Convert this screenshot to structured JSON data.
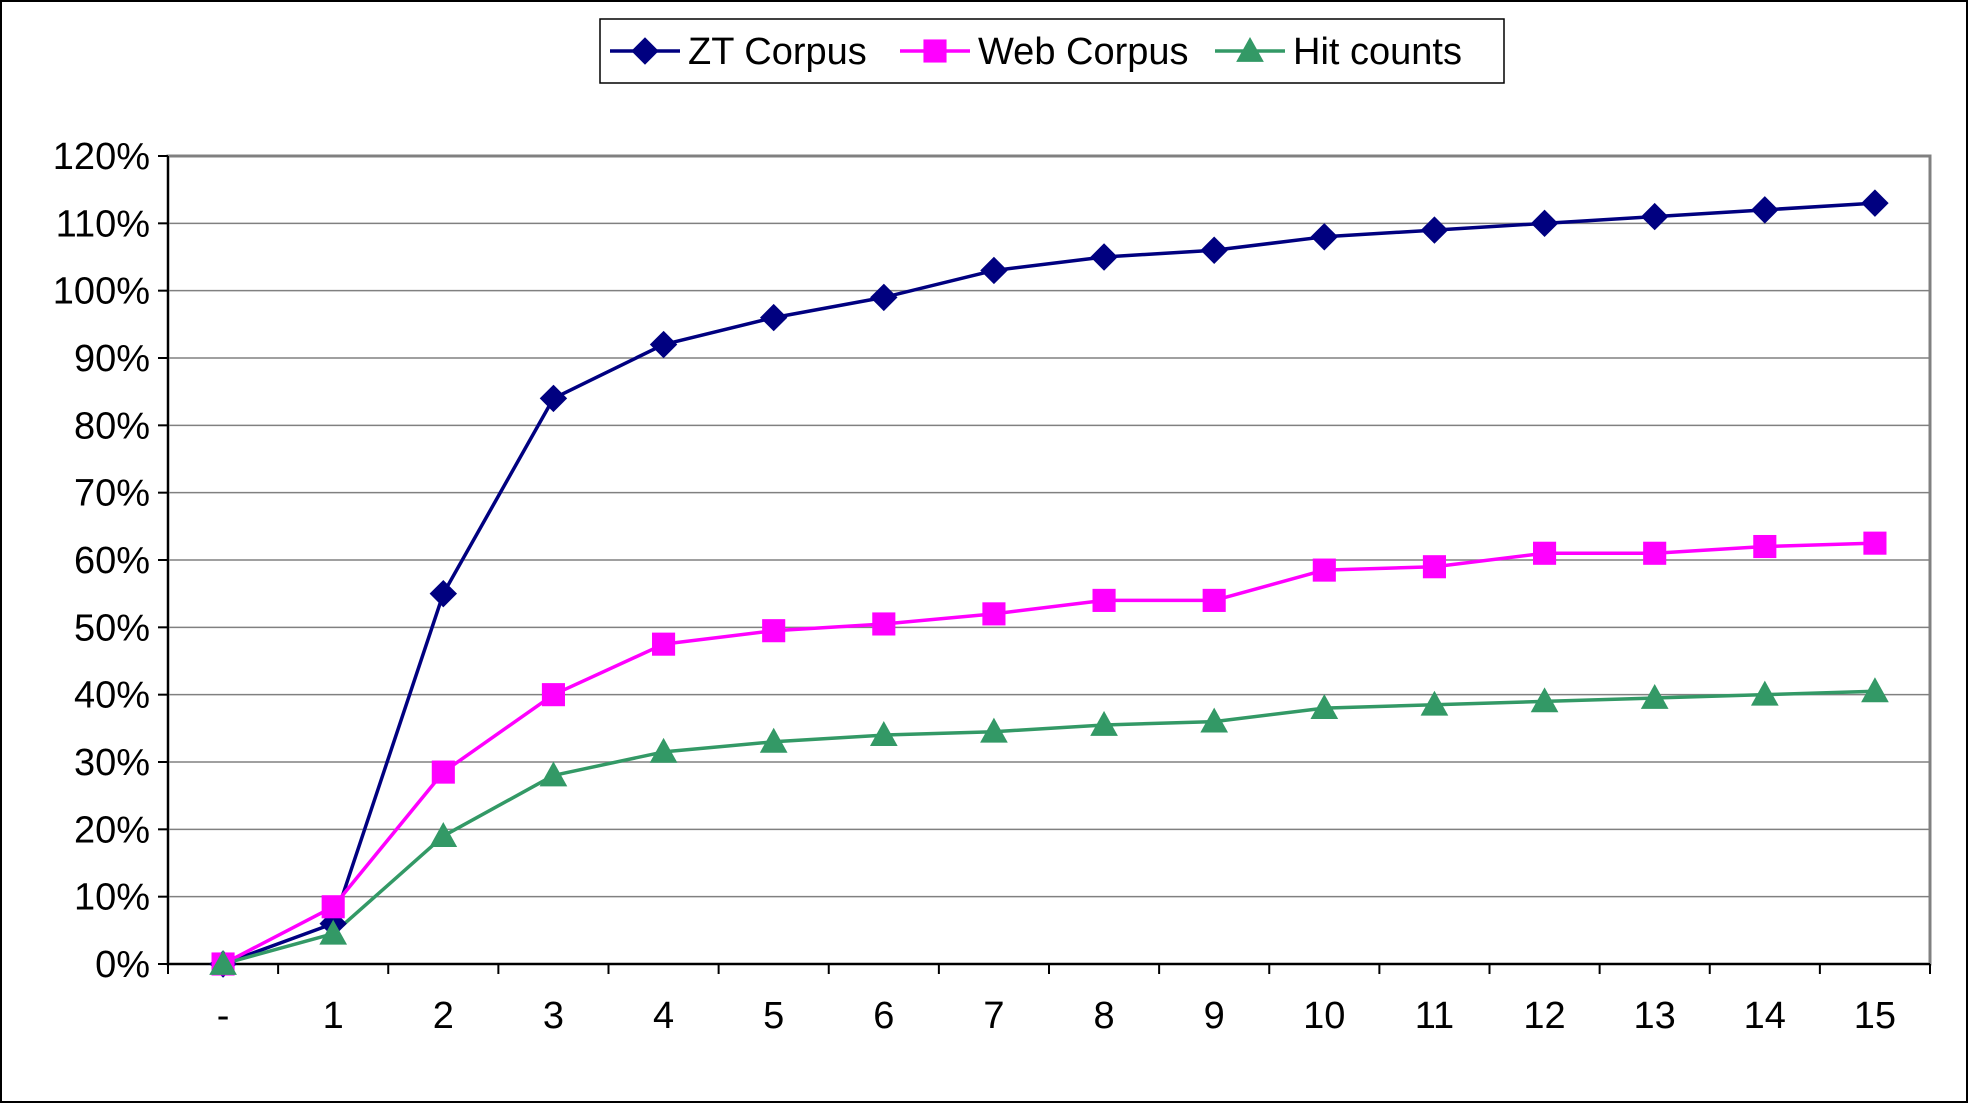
{
  "chart_data": {
    "type": "line",
    "categories": [
      "-",
      "1",
      "2",
      "3",
      "4",
      "5",
      "6",
      "7",
      "8",
      "9",
      "10",
      "11",
      "12",
      "13",
      "14",
      "15"
    ],
    "ylim": [
      0,
      120
    ],
    "yticks": [
      0,
      10,
      20,
      30,
      40,
      50,
      60,
      70,
      80,
      90,
      100,
      110,
      120
    ],
    "ytick_labels": [
      "0%",
      "10%",
      "20%",
      "30%",
      "40%",
      "50%",
      "60%",
      "70%",
      "80%",
      "90%",
      "100%",
      "110%",
      "120%"
    ],
    "y_unit": "%",
    "grid": "horizontal",
    "legend_position": "top-center",
    "plot_background": "#ffffff",
    "series": [
      {
        "name": "ZT Corpus",
        "color": "#000080",
        "marker": "diamond",
        "values": [
          0,
          6,
          55,
          84,
          92,
          96,
          99,
          103,
          105,
          106,
          108,
          109,
          110,
          111,
          112,
          113
        ]
      },
      {
        "name": "Web Corpus",
        "color": "#ff00ff",
        "marker": "square",
        "values": [
          0,
          8.5,
          28.5,
          40,
          47.5,
          49.5,
          50.5,
          52,
          54,
          54,
          58.5,
          59,
          61,
          61,
          62,
          62.5
        ]
      },
      {
        "name": "Hit counts",
        "color": "#339966",
        "marker": "triangle",
        "values": [
          0,
          4.5,
          19,
          28,
          31.5,
          33,
          34,
          34.5,
          35.5,
          36,
          38,
          38.5,
          39,
          39.5,
          40,
          40.5
        ]
      }
    ]
  }
}
